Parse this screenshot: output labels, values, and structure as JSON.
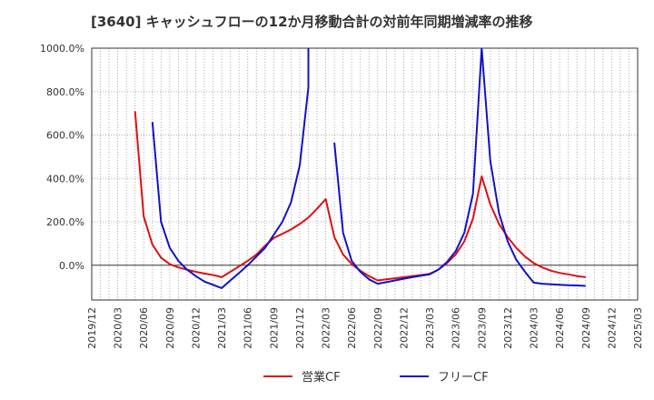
{
  "chart_data": {
    "type": "line",
    "title": "[3640]  キャッシュフローの12か月移動合計の対前年同期増減率の推移",
    "xlabel": "",
    "ylabel": "",
    "ylim": [
      -160,
      1000
    ],
    "y_ticks": [
      0,
      200,
      400,
      600,
      800,
      1000
    ],
    "y_tick_labels": [
      "0.0%",
      "200.0%",
      "400.0%",
      "600.0%",
      "800.0%",
      "1000.0%"
    ],
    "x_tick_labels": [
      "2019/12",
      "2020/03",
      "2020/06",
      "2020/09",
      "2020/12",
      "2021/03",
      "2021/06",
      "2021/09",
      "2021/12",
      "2022/03",
      "2022/06",
      "2022/09",
      "2022/12",
      "2023/03",
      "2023/06",
      "2023/09",
      "2023/12",
      "2024/03",
      "2024/06",
      "2024/09",
      "2024/12",
      "2025/03"
    ],
    "grid": true,
    "legend_position": "bottom-center",
    "series": [
      {
        "name": "営業CF",
        "color": "#dd1111",
        "points": [
          [
            "2020/05",
            710
          ],
          [
            "2020/06",
            225
          ],
          [
            "2020/07",
            95
          ],
          [
            "2020/08",
            35
          ],
          [
            "2020/09",
            5
          ],
          [
            "2020/10",
            -10
          ],
          [
            "2020/11",
            -20
          ],
          [
            "2020/12",
            -30
          ],
          [
            "2021/01",
            -38
          ],
          [
            "2021/02",
            -45
          ],
          [
            "2021/03",
            -55
          ],
          [
            "2021/04",
            -30
          ],
          [
            "2021/05",
            -5
          ],
          [
            "2021/06",
            20
          ],
          [
            "2021/07",
            50
          ],
          [
            "2021/08",
            90
          ],
          [
            "2021/09",
            125
          ],
          [
            "2021/10",
            145
          ],
          [
            "2021/11",
            165
          ],
          [
            "2021/12",
            190
          ],
          [
            "2022/01",
            220
          ],
          [
            "2022/02",
            260
          ],
          [
            "2022/03",
            305
          ],
          [
            "2022/04",
            130
          ],
          [
            "2022/05",
            50
          ],
          [
            "2022/06",
            5
          ],
          [
            "2022/07",
            -25
          ],
          [
            "2022/08",
            -50
          ],
          [
            "2022/09",
            -70
          ],
          [
            "2022/10",
            -65
          ],
          [
            "2022/11",
            -60
          ],
          [
            "2022/12",
            -55
          ],
          [
            "2023/01",
            -50
          ],
          [
            "2023/02",
            -45
          ],
          [
            "2023/03",
            -40
          ],
          [
            "2023/04",
            -20
          ],
          [
            "2023/05",
            10
          ],
          [
            "2023/06",
            50
          ],
          [
            "2023/07",
            110
          ],
          [
            "2023/08",
            215
          ],
          [
            "2023/09",
            410
          ],
          [
            "2023/10",
            280
          ],
          [
            "2023/11",
            190
          ],
          [
            "2023/12",
            130
          ],
          [
            "2024/01",
            80
          ],
          [
            "2024/02",
            40
          ],
          [
            "2024/03",
            10
          ],
          [
            "2024/04",
            -10
          ],
          [
            "2024/05",
            -25
          ],
          [
            "2024/06",
            -35
          ],
          [
            "2024/07",
            -42
          ],
          [
            "2024/08",
            -50
          ],
          [
            "2024/09",
            -55
          ]
        ]
      },
      {
        "name": "フリーCF",
        "color": "#1111cc",
        "points": [
          [
            "2020/07",
            660
          ],
          [
            "2020/08",
            200
          ],
          [
            "2020/09",
            80
          ],
          [
            "2020/10",
            20
          ],
          [
            "2020/11",
            -20
          ],
          [
            "2020/12",
            -50
          ],
          [
            "2021/01",
            -75
          ],
          [
            "2021/02",
            -90
          ],
          [
            "2021/03",
            -105
          ],
          [
            "2021/04",
            -70
          ],
          [
            "2021/05",
            -35
          ],
          [
            "2021/06",
            0
          ],
          [
            "2021/07",
            40
          ],
          [
            "2021/08",
            80
          ],
          [
            "2021/09",
            140
          ],
          [
            "2021/10",
            200
          ],
          [
            "2021/11",
            290
          ],
          [
            "2021/12",
            460
          ],
          [
            "2022/01",
            820
          ],
          [
            "2022/01",
            1000
          ],
          [
            null,
            null
          ],
          [
            "2022/04",
            565
          ],
          [
            "2022/05",
            150
          ],
          [
            "2022/06",
            20
          ],
          [
            "2022/07",
            -30
          ],
          [
            "2022/08",
            -65
          ],
          [
            "2022/09",
            -85
          ],
          [
            "2022/10",
            -78
          ],
          [
            "2022/11",
            -70
          ],
          [
            "2022/12",
            -62
          ],
          [
            "2023/01",
            -55
          ],
          [
            "2023/02",
            -48
          ],
          [
            "2023/03",
            -42
          ],
          [
            "2023/04",
            -20
          ],
          [
            "2023/05",
            15
          ],
          [
            "2023/06",
            65
          ],
          [
            "2023/07",
            150
          ],
          [
            "2023/08",
            330
          ],
          [
            "2023/09",
            1000
          ],
          [
            "2023/10",
            480
          ],
          [
            "2023/11",
            240
          ],
          [
            "2023/12",
            110
          ],
          [
            "2024/01",
            25
          ],
          [
            "2024/02",
            -30
          ],
          [
            "2024/03",
            -80
          ],
          [
            "2024/04",
            -85
          ],
          [
            "2024/05",
            -88
          ],
          [
            "2024/06",
            -90
          ],
          [
            "2024/07",
            -92
          ],
          [
            "2024/08",
            -93
          ],
          [
            "2024/09",
            -95
          ]
        ]
      }
    ]
  }
}
